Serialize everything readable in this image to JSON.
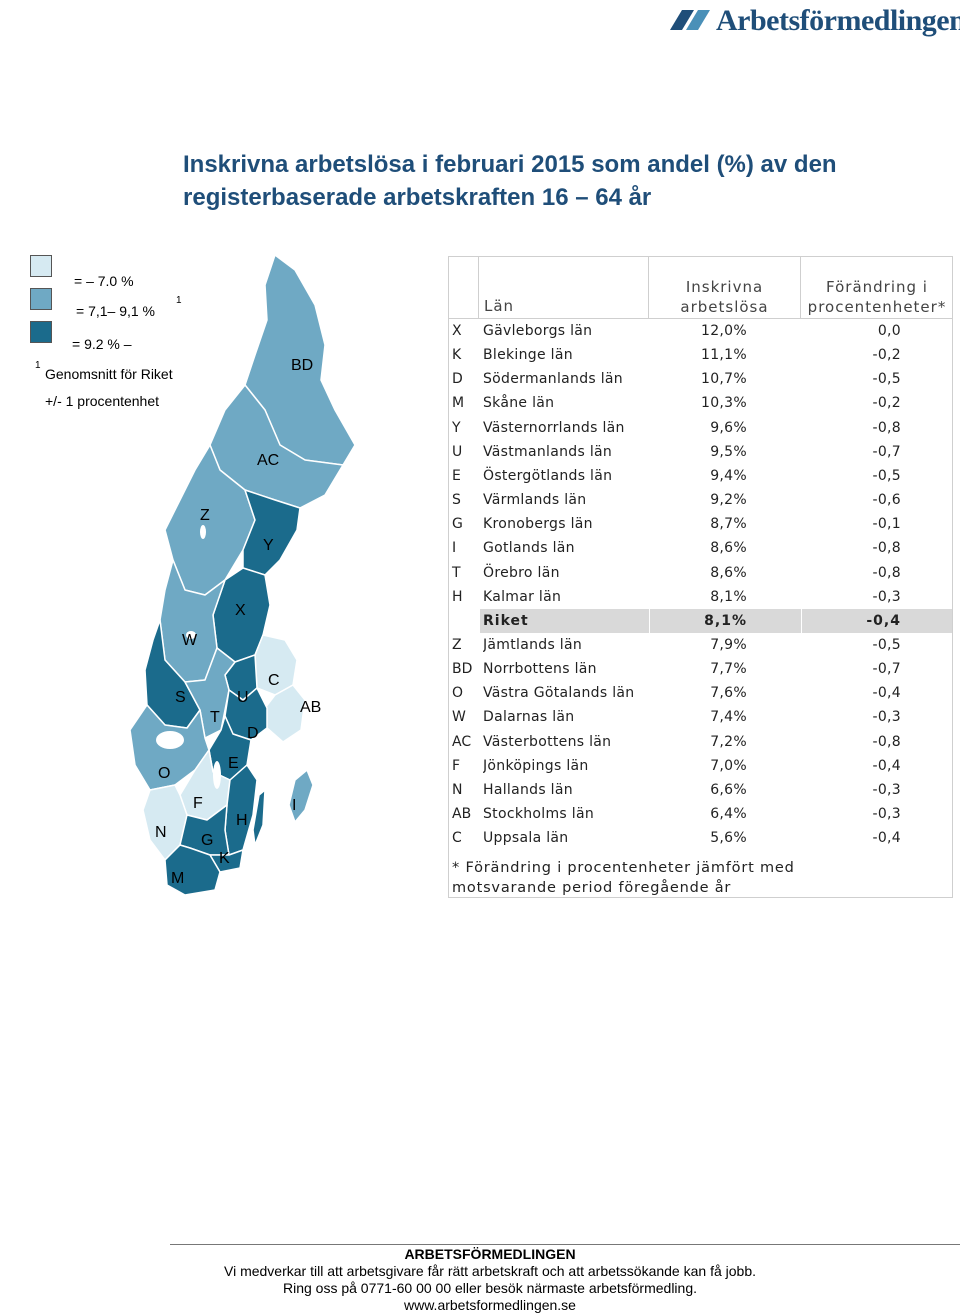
{
  "logo": {
    "text": "Arbetsförmedlingen"
  },
  "title": {
    "line1": "Inskrivna arbetslösa i februari 2015 som andel (%) av den",
    "line2": "registerbaserade arbetskraften 16 – 64 år"
  },
  "legend": {
    "items": [
      {
        "label": "= – 7.0 %",
        "color": "#d6eaf2"
      },
      {
        "label": "= 7,1– 9,1 %",
        "sup": "1",
        "color": "#6fa9c4"
      },
      {
        "label": "= 9.2 % –",
        "color": "#1b6b8c"
      }
    ],
    "footnote_mark": "1",
    "footnote_line1": "Genomsnitt för Riket",
    "footnote_line2": "+/- 1 procentenhet"
  },
  "map": {
    "colors": {
      "low": "#d6eaf2",
      "mid": "#6fa9c4",
      "high": "#1b6b8c",
      "border": "#ffffff"
    },
    "labels": [
      "BD",
      "AC",
      "Z",
      "Y",
      "X",
      "W",
      "C",
      "AB",
      "S",
      "U",
      "T",
      "D",
      "E",
      "O",
      "F",
      "H",
      "I",
      "N",
      "G",
      "K",
      "M"
    ]
  },
  "table": {
    "headers": {
      "lan": "Län",
      "inskrivna_line1": "Inskrivna",
      "inskrivna_line2": "arbetslösa",
      "forandring_line1": "Förändring i",
      "forandring_line2": "procentenheter*"
    },
    "rows": [
      {
        "code": "X",
        "name": "Gävleborgs län",
        "pct": "12,0%",
        "chg": "0,0"
      },
      {
        "code": "K",
        "name": "Blekinge län",
        "pct": "11,1%",
        "chg": "-0,2"
      },
      {
        "code": "D",
        "name": "Södermanlands län",
        "pct": "10,7%",
        "chg": "-0,5"
      },
      {
        "code": "M",
        "name": "Skåne län",
        "pct": "10,3%",
        "chg": "-0,2"
      },
      {
        "code": "Y",
        "name": "Västernorrlands län",
        "pct": "9,6%",
        "chg": "-0,8"
      },
      {
        "code": "U",
        "name": "Västmanlands län",
        "pct": "9,5%",
        "chg": "-0,7"
      },
      {
        "code": "E",
        "name": "Östergötlands län",
        "pct": "9,4%",
        "chg": "-0,5"
      },
      {
        "code": "S",
        "name": "Värmlands län",
        "pct": "9,2%",
        "chg": "-0,6"
      },
      {
        "code": "G",
        "name": "Kronobergs län",
        "pct": "8,7%",
        "chg": "-0,1"
      },
      {
        "code": "I",
        "name": "Gotlands län",
        "pct": "8,6%",
        "chg": "-0,8"
      },
      {
        "code": "T",
        "name": "Örebro län",
        "pct": "8,6%",
        "chg": "-0,8"
      },
      {
        "code": "H",
        "name": "Kalmar län",
        "pct": "8,1%",
        "chg": "-0,3"
      },
      {
        "code": "",
        "name": "Riket",
        "pct": "8,1%",
        "chg": "-0,4",
        "highlight": true
      },
      {
        "code": "Z",
        "name": "Jämtlands län",
        "pct": "7,9%",
        "chg": "-0,5"
      },
      {
        "code": "BD",
        "name": "Norrbottens län",
        "pct": "7,7%",
        "chg": "-0,7"
      },
      {
        "code": "O",
        "name": "Västra Götalands län",
        "pct": "7,6%",
        "chg": "-0,4"
      },
      {
        "code": "W",
        "name": "Dalarnas län",
        "pct": "7,4%",
        "chg": "-0,3"
      },
      {
        "code": "AC",
        "name": "Västerbottens län",
        "pct": "7,2%",
        "chg": "-0,8"
      },
      {
        "code": "F",
        "name": "Jönköpings län",
        "pct": "7,0%",
        "chg": "-0,4"
      },
      {
        "code": "N",
        "name": "Hallands län",
        "pct": "6,6%",
        "chg": "-0,3"
      },
      {
        "code": "AB",
        "name": "Stockholms län",
        "pct": "6,4%",
        "chg": "-0,3"
      },
      {
        "code": "C",
        "name": "Uppsala län",
        "pct": "5,6%",
        "chg": "-0,4"
      }
    ],
    "note_line1": "* Förändring i procentenheter jämfört med",
    "note_line2": "motsvarande period föregående år"
  },
  "footer": {
    "org": "ARBETSFÖRMEDLINGEN",
    "line1": "Vi medverkar till att arbetsgivare får rätt arbetskraft och att arbetssökande kan få jobb.",
    "line2": "Ring oss på 0771-60 00 00 eller besök närmaste arbetsförmedling.",
    "line3": "www.arbetsformedlingen.se"
  }
}
